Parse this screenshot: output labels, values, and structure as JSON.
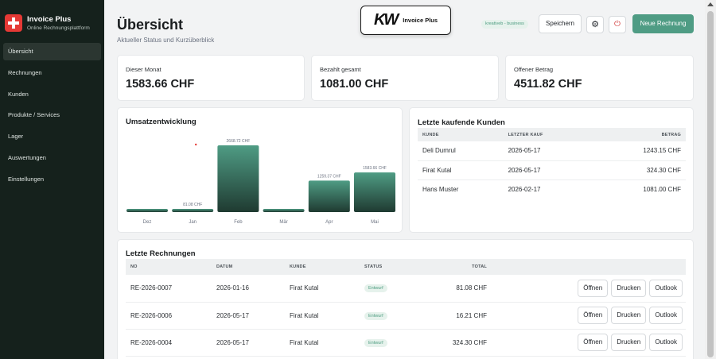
{
  "sidebar": {
    "brand_title": "Invoice Plus",
    "brand_subtitle": "Online Rechnungsplattform",
    "items": [
      {
        "label": "Übersicht",
        "active": true
      },
      {
        "label": "Rechnungen"
      },
      {
        "label": "Kunden"
      },
      {
        "label": "Produkte / Services"
      },
      {
        "label": "Lager"
      },
      {
        "label": "Auswertungen"
      },
      {
        "label": "Einstellungen"
      }
    ]
  },
  "header": {
    "title": "Übersicht",
    "subtitle": "Aktueller Status und Kurzüberblick",
    "logo_mark": "KW",
    "logo_text": "Invoice Plus",
    "business_badge": "kreativeb - business",
    "save_label": "Speichern",
    "settings_icon": "gear-icon",
    "logout_icon": "power-icon",
    "new_invoice_label": "Neue Rechnung"
  },
  "stats": [
    {
      "label": "Dieser Monat",
      "value": "1583.66 CHF"
    },
    {
      "label": "Bezahlt gesamt",
      "value": "1081.00 CHF"
    },
    {
      "label": "Offener Betrag",
      "value": "4511.82 CHF"
    }
  ],
  "revenue": {
    "title": "Umsatzentwicklung"
  },
  "chart_data": {
    "type": "bar",
    "title": "Umsatzentwicklung",
    "categories": [
      "Dez",
      "Jan",
      "Feb",
      "Mär",
      "Apr",
      "Mai"
    ],
    "values": [
      0,
      81.08,
      2668.72,
      0,
      1259.37,
      1583.66
    ],
    "labels": [
      "",
      "81.08 CHF",
      "2668.72 CHF",
      "",
      "1259.37 CHF",
      "1583.66 CHF"
    ],
    "ylim": [
      0,
      2668.72
    ],
    "grid": false,
    "colors": {
      "bar_top": "#4f9c84",
      "bar_bottom": "#1f3a31",
      "point": "#e53935"
    }
  },
  "customers": {
    "title": "Letzte kaufende Kunden",
    "columns": [
      "KUNDE",
      "LETZTER KAUF",
      "BETRAG"
    ],
    "rows": [
      {
        "kunde": "Deli Dumrul",
        "kauf": "2026-05-17",
        "betrag": "1243.15 CHF"
      },
      {
        "kunde": "Firat Kutal",
        "kauf": "2026-05-17",
        "betrag": "324.30 CHF"
      },
      {
        "kunde": "Hans Muster",
        "kauf": "2026-02-17",
        "betrag": "1081.00 CHF"
      }
    ]
  },
  "invoices": {
    "title": "Letzte Rechnungen",
    "columns": [
      "NO",
      "DATUM",
      "KUNDE",
      "STATUS",
      "TOTAL"
    ],
    "actions": [
      "Öffnen",
      "Drucken",
      "Outlook"
    ],
    "rows": [
      {
        "no": "RE-2026-0007",
        "datum": "2026-01-16",
        "kunde": "Firat Kutal",
        "status": "Entwurf",
        "total": "81.08 CHF"
      },
      {
        "no": "RE-2026-0006",
        "datum": "2026-05-17",
        "kunde": "Firat Kutal",
        "status": "Entwurf",
        "total": "16.21 CHF"
      },
      {
        "no": "RE-2026-0004",
        "datum": "2026-05-17",
        "kunde": "Firat Kutal",
        "status": "Entwurf",
        "total": "324.30 CHF"
      }
    ]
  }
}
